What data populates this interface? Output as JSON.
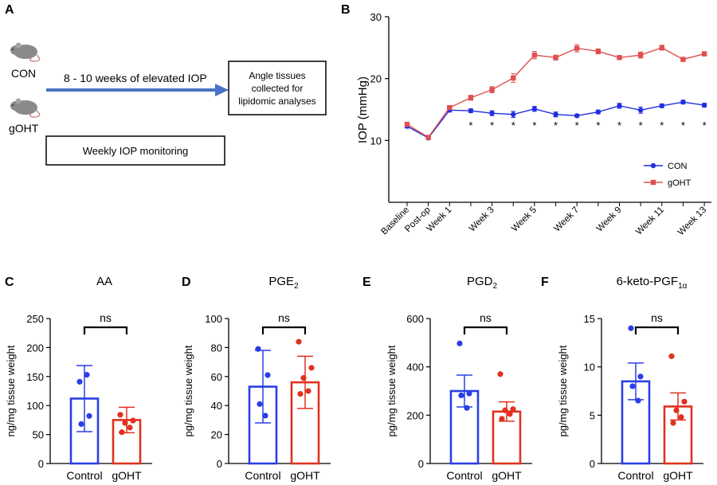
{
  "panels": {
    "A": "A",
    "B": "B",
    "C": "C",
    "D": "D",
    "E": "E",
    "F": "F"
  },
  "panelA": {
    "group1": "CON",
    "group2": "gOHT",
    "arrow_label": "8 - 10 weeks of elevated IOP",
    "box_lines": [
      "Angle tissues",
      "collected for",
      "lipidomic analyses"
    ],
    "monitor_label": "Weekly IOP monitoring",
    "mouse_icon": "mouse-icon",
    "colors": {
      "arrow": "#4a72c4",
      "mouse": "#8a8a8a"
    }
  },
  "chart_data": [
    {
      "panel": "B",
      "type": "line",
      "title": "",
      "xlabel": "",
      "ylabel": "IOP (mmHg)",
      "ylim": [
        0,
        30
      ],
      "yticks": [
        10,
        20,
        30
      ],
      "categories": [
        "Baseline",
        "Post-op",
        "Week 1",
        "Week 2",
        "Week 3",
        "Week 4",
        "Week 5",
        "Week 6",
        "Week 7",
        "Week 8",
        "Week 9",
        "Week 10",
        "Week 11",
        "Week 12",
        "Week 13"
      ],
      "tick_labels": [
        "Baseline",
        "Post-op",
        "Week 1",
        "",
        "Week 3",
        "",
        "Week 5",
        "",
        "Week 7",
        "",
        "Week 9",
        "",
        "Week 11",
        "",
        "Week 13"
      ],
      "significance": [
        "",
        "",
        "",
        "*",
        "*",
        "*",
        "*",
        "*",
        "*",
        "*",
        "*",
        "*",
        "*",
        "*",
        "*"
      ],
      "legend_position": "right",
      "series": [
        {
          "name": "CON",
          "color": "#1f2fe0",
          "marker": "circle",
          "values": [
            12.3,
            10.4,
            14.9,
            14.8,
            14.4,
            14.2,
            15.1,
            14.2,
            14.0,
            14.6,
            15.6,
            14.9,
            15.6,
            16.2,
            15.7
          ],
          "errors": [
            0.3,
            0.2,
            0.3,
            0.3,
            0.4,
            0.5,
            0.4,
            0.4,
            0.2,
            0.3,
            0.4,
            0.5,
            0.3,
            0.3,
            0.3
          ]
        },
        {
          "name": "gOHT",
          "color": "#e05050",
          "marker": "square",
          "values": [
            12.6,
            10.5,
            15.3,
            16.9,
            18.2,
            20.1,
            23.8,
            23.4,
            24.9,
            24.4,
            23.4,
            23.8,
            25.0,
            23.1,
            24.0
          ],
          "errors": [
            0.3,
            0.2,
            0.3,
            0.4,
            0.5,
            0.7,
            0.6,
            0.4,
            0.6,
            0.4,
            0.3,
            0.5,
            0.4,
            0.3,
            0.3
          ]
        }
      ]
    },
    {
      "panel": "C",
      "type": "bar",
      "title": "AA",
      "title_sub": "",
      "ylabel": "ng/mg tissue weight",
      "ylim": [
        0,
        250
      ],
      "yticks": [
        0,
        50,
        100,
        150,
        200,
        250
      ],
      "categories": [
        "Control",
        "gOHT"
      ],
      "significance": "ns",
      "series": [
        {
          "name": "Control",
          "color": "#2a3fe6",
          "mean": 112,
          "sem": 57,
          "points": [
            141,
            82,
            68,
            153
          ]
        },
        {
          "name": "gOHT",
          "color": "#e0321e",
          "mean": 75,
          "sem": 22,
          "points": [
            84,
            74,
            70,
            62,
            54
          ]
        }
      ]
    },
    {
      "panel": "D",
      "type": "bar",
      "title": "PGE",
      "title_sub": "2",
      "ylabel": "pg/mg tissue weight",
      "ylim": [
        0,
        100
      ],
      "yticks": [
        0,
        20,
        40,
        60,
        80,
        100
      ],
      "categories": [
        "Control",
        "gOHT"
      ],
      "significance": "ns",
      "series": [
        {
          "name": "Control",
          "color": "#2a3fe6",
          "mean": 53,
          "sem": 25,
          "points": [
            79,
            61,
            41,
            33
          ]
        },
        {
          "name": "gOHT",
          "color": "#e0321e",
          "mean": 56,
          "sem": 18,
          "points": [
            84,
            66,
            59,
            50,
            48
          ]
        }
      ]
    },
    {
      "panel": "E",
      "type": "bar",
      "title": "PGD",
      "title_sub": "2",
      "ylabel": "pg/mg tissue weight",
      "ylim": [
        0,
        600
      ],
      "yticks": [
        0,
        200,
        400,
        600
      ],
      "categories": [
        "Control",
        "gOHT"
      ],
      "significance": "ns",
      "series": [
        {
          "name": "Control",
          "color": "#2a3fe6",
          "mean": 300,
          "sem": 66,
          "points": [
            497,
            290,
            282,
            230
          ]
        },
        {
          "name": "gOHT",
          "color": "#e0321e",
          "mean": 215,
          "sem": 40,
          "points": [
            370,
            225,
            220,
            205,
            185
          ]
        }
      ]
    },
    {
      "panel": "F",
      "type": "bar",
      "title": "6-keto-PGF",
      "title_sub": "1α",
      "ylabel": "pg/mg tissue weight",
      "ylim": [
        0,
        15
      ],
      "yticks": [
        0,
        5,
        10,
        15
      ],
      "categories": [
        "Control",
        "gOHT"
      ],
      "significance": "ns",
      "series": [
        {
          "name": "Control",
          "color": "#2a3fe6",
          "mean": 8.5,
          "sem": 1.9,
          "points": [
            14.0,
            9.0,
            8.0,
            6.5
          ]
        },
        {
          "name": "gOHT",
          "color": "#e0321e",
          "mean": 5.9,
          "sem": 1.4,
          "points": [
            11.1,
            6.4,
            5.5,
            4.8,
            4.2
          ]
        }
      ]
    }
  ]
}
